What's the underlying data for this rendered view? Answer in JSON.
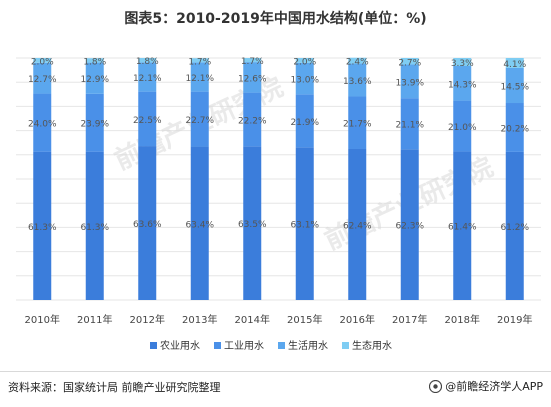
{
  "title": "图表5：2010-2019年中国用水结构(单位：%)",
  "source": "资料来源：国家统计局 前瞻产业研究院整理",
  "brand": "@前瞻经济学人APP",
  "watermark": "前瞻产业研究院",
  "chart_data": {
    "type": "bar",
    "stacked": true,
    "percent_stacked": true,
    "categories": [
      "2010年",
      "2011年",
      "2012年",
      "2013年",
      "2014年",
      "2015年",
      "2016年",
      "2017年",
      "2018年",
      "2019年"
    ],
    "series": [
      {
        "name": "农业用水",
        "color": "#3b7ddb",
        "values": [
          61.3,
          61.3,
          63.6,
          63.4,
          63.5,
          63.1,
          62.4,
          62.3,
          61.4,
          61.2
        ]
      },
      {
        "name": "工业用水",
        "color": "#4a90e8",
        "values": [
          24.0,
          23.9,
          22.5,
          22.7,
          22.2,
          21.9,
          21.7,
          21.1,
          21.0,
          20.2
        ]
      },
      {
        "name": "生活用水",
        "color": "#5ba7ee",
        "values": [
          12.7,
          12.9,
          12.1,
          12.1,
          12.6,
          13.0,
          13.6,
          13.9,
          14.3,
          14.5
        ]
      },
      {
        "name": "生态用水",
        "color": "#7fcdf3",
        "values": [
          2.0,
          1.8,
          1.8,
          1.7,
          1.7,
          2.0,
          2.4,
          2.7,
          3.3,
          4.1
        ]
      }
    ],
    "labels": {
      "农业用水": [
        "61.3%",
        "61.3%",
        "63.6%",
        "63.4%",
        "63.5%",
        "63.1%",
        "62.4%",
        "62.3%",
        "61.4%",
        "61.2%"
      ],
      "工业用水": [
        "24.0%",
        "23.9%",
        "22.5%",
        "22.7%",
        "22.2%",
        "21.9%",
        "21.7%",
        "21.1%",
        "21.0%",
        "20.2%"
      ],
      "生活用水": [
        "12.7%",
        "12.9%",
        "12.1%",
        "12.1%",
        "12.6%",
        "13.0%",
        "13.6%",
        "13.9%",
        "14.3%",
        "14.5%"
      ],
      "生态用水": [
        "2.0%",
        "1.8%",
        "1.8%",
        "1.7%",
        "1.7%",
        "2.0%",
        "2.4%",
        "2.7%",
        "3.3%",
        "4.1%"
      ]
    },
    "ylim": [
      0,
      100
    ],
    "grid": true,
    "legend": "bottom"
  }
}
